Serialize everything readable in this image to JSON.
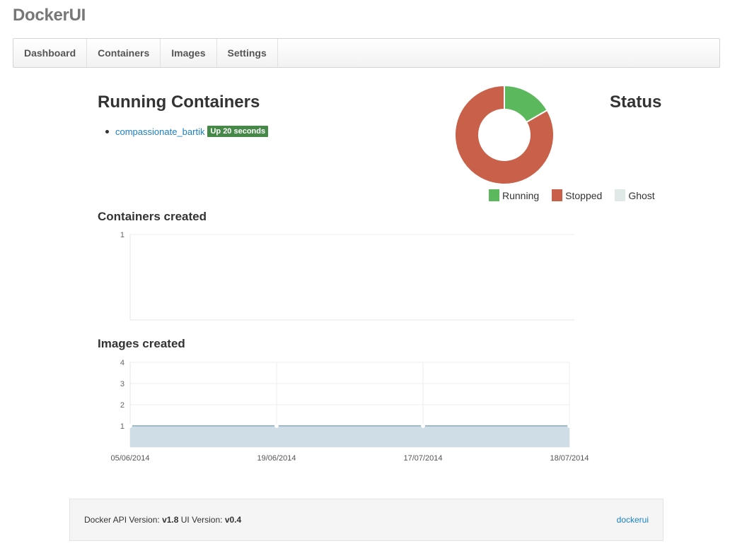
{
  "app": {
    "brand": "DockerUI"
  },
  "nav": {
    "items": [
      {
        "id": "dashboard",
        "label": "Dashboard"
      },
      {
        "id": "containers",
        "label": "Containers"
      },
      {
        "id": "images",
        "label": "Images"
      },
      {
        "id": "settings",
        "label": "Settings"
      }
    ]
  },
  "running": {
    "title": "Running Containers",
    "containers": [
      {
        "name": "compassionate_bartik",
        "status": "Up 20 seconds"
      }
    ]
  },
  "status_panel": {
    "title": "Status",
    "colors": {
      "running": "#5cb85c",
      "stopped": "#c9604a",
      "ghost": "#e1e8e8"
    }
  },
  "chart_data": [
    {
      "type": "pie",
      "title": "Status",
      "donut": true,
      "labels": [
        "Running",
        "Stopped",
        "Ghost"
      ],
      "values": [
        1,
        5,
        0
      ],
      "colors": [
        "#5cb85c",
        "#c9604a",
        "#e1e8e8"
      ],
      "legend": "bottom"
    },
    {
      "type": "line",
      "title": "Containers created",
      "x": [],
      "series": [
        {
          "values": []
        }
      ],
      "yticks": [
        "1"
      ],
      "ylim": [
        0,
        1
      ],
      "grid": true
    },
    {
      "type": "area",
      "title": "Images created",
      "x": [
        "05/06/2014",
        "19/06/2014",
        "17/07/2014",
        "18/07/2014"
      ],
      "series": [
        {
          "values": [
            1,
            1,
            1,
            1
          ]
        }
      ],
      "yticks": [
        "1",
        "2",
        "3",
        "4"
      ],
      "ylim": [
        0,
        4
      ],
      "grid": true,
      "fill_color": "#cfdee6",
      "line_color": "#9fb9c6"
    }
  ],
  "footer": {
    "api_label": "Docker API Version:",
    "api_version": "v1.8",
    "ui_label": "UI Version:",
    "ui_version": "v0.4",
    "link": "dockerui"
  }
}
